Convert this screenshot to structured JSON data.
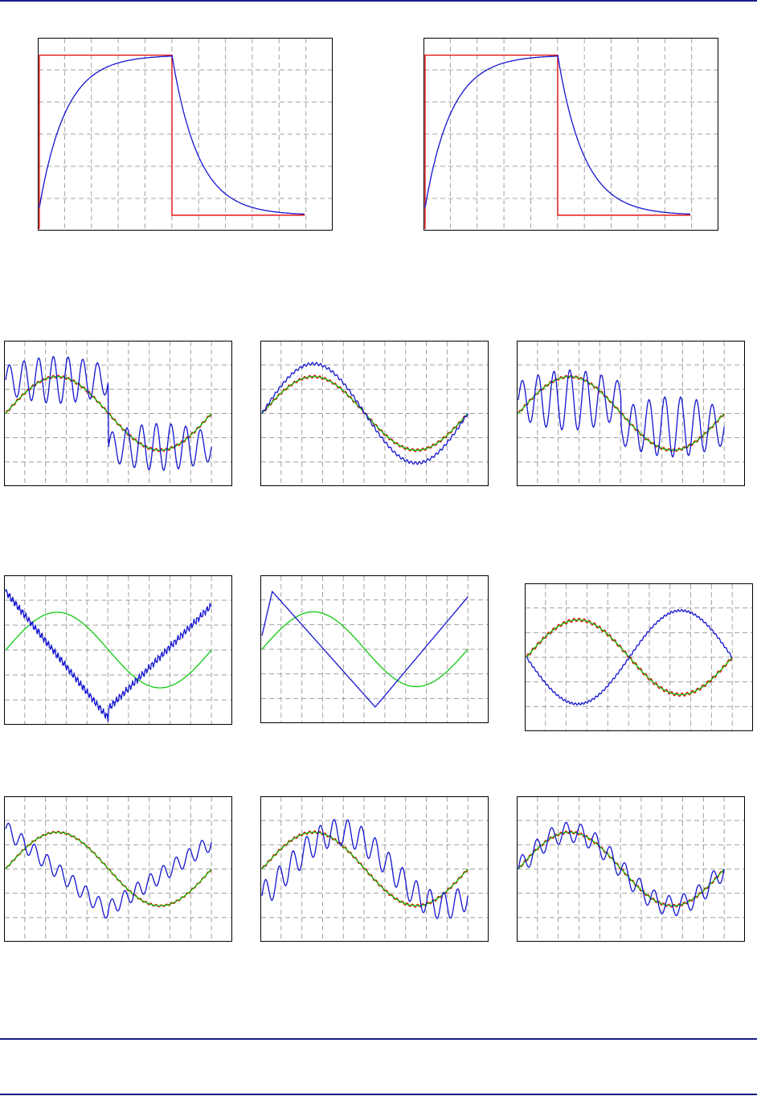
{
  "colors": {
    "page_rule": "#1a1a8c",
    "frame": "#000000",
    "grid": "#a0a0a0",
    "reference": "#e00000",
    "response": "#1414d2",
    "target": "#10c810"
  },
  "chart_data": [
    {
      "type": "line",
      "signal": "step",
      "grid": true,
      "xlim": [
        0,
        10
      ],
      "ylim": [
        -1,
        1
      ],
      "series": [
        {
          "color": "#e00000",
          "kind": "square"
        },
        {
          "color": "#1414d2",
          "kind": "exp_response",
          "tau": 1.0
        }
      ]
    },
    {
      "type": "line",
      "signal": "step",
      "grid": true,
      "xlim": [
        0,
        10
      ],
      "ylim": [
        -1,
        1
      ],
      "series": [
        {
          "color": "#e00000",
          "kind": "square"
        },
        {
          "color": "#1414d2",
          "kind": "exp_response",
          "tau": 1.0
        }
      ]
    },
    {
      "type": "line",
      "signal": "sine",
      "grid": true,
      "xlim": [
        0,
        10
      ],
      "ylim": [
        -1,
        1
      ],
      "amplitude": 0.55,
      "series": [
        {
          "color": "#e00000",
          "kind": "sine_ripple",
          "ripple": 0.02
        },
        {
          "color": "#10c810",
          "kind": "sine"
        },
        {
          "color": "#1414d2",
          "kind": "burst",
          "osc_amp": 0.35,
          "osc_freq": 14,
          "offset": 0.5
        }
      ]
    },
    {
      "type": "line",
      "signal": "sine",
      "grid": true,
      "xlim": [
        0,
        10
      ],
      "ylim": [
        -1,
        1
      ],
      "amplitude": 0.55,
      "series": [
        {
          "color": "#e00000",
          "kind": "sine_ripple",
          "ripple": 0.02
        },
        {
          "color": "#10c810",
          "kind": "sine"
        },
        {
          "color": "#1414d2",
          "kind": "sine_scaled",
          "gain": 1.35,
          "ripple": 0.02
        }
      ]
    },
    {
      "type": "line",
      "signal": "sine",
      "grid": true,
      "xlim": [
        0,
        10
      ],
      "ylim": [
        -1,
        1
      ],
      "amplitude": 0.55,
      "series": [
        {
          "color": "#e00000",
          "kind": "sine_ripple",
          "ripple": 0.02
        },
        {
          "color": "#10c810",
          "kind": "sine"
        },
        {
          "color": "#1414d2",
          "kind": "burst",
          "osc_amp": 0.45,
          "osc_freq": 13,
          "offset": 0.2
        }
      ]
    },
    {
      "type": "line",
      "signal": "sine",
      "grid": true,
      "xlim": [
        0,
        10
      ],
      "ylim": [
        -1,
        1
      ],
      "amplitude": 0.55,
      "series": [
        {
          "color": "#10c810",
          "kind": "sine"
        },
        {
          "color": "#1414d2",
          "kind": "sawtooth_noisy"
        }
      ]
    },
    {
      "type": "line",
      "signal": "sine",
      "grid": true,
      "xlim": [
        0,
        10
      ],
      "ylim": [
        -1,
        1
      ],
      "amplitude": 0.55,
      "series": [
        {
          "color": "#10c810",
          "kind": "sine"
        },
        {
          "color": "#1414d2",
          "kind": "triangle_like"
        }
      ]
    },
    {
      "type": "line",
      "signal": "sine",
      "grid": true,
      "xlim": [
        0,
        10
      ],
      "ylim": [
        -1,
        1
      ],
      "amplitude": 0.55,
      "series": [
        {
          "color": "#e00000",
          "kind": "sine_ripple",
          "ripple": 0.025
        },
        {
          "color": "#10c810",
          "kind": "sine"
        },
        {
          "color": "#1414d2",
          "kind": "inverted_sine",
          "ripple": 0.015
        }
      ]
    },
    {
      "type": "line",
      "signal": "sine",
      "grid": true,
      "xlim": [
        0,
        10
      ],
      "ylim": [
        -1,
        1
      ],
      "amplitude": 0.55,
      "series": [
        {
          "color": "#e00000",
          "kind": "sine_ripple",
          "ripple": 0.015
        },
        {
          "color": "#10c810",
          "kind": "sine"
        },
        {
          "color": "#1414d2",
          "kind": "sawtooth_ripple"
        }
      ]
    },
    {
      "type": "line",
      "signal": "sine",
      "grid": true,
      "xlim": [
        0,
        10
      ],
      "ylim": [
        -1,
        1
      ],
      "amplitude": 0.55,
      "series": [
        {
          "color": "#e00000",
          "kind": "sine_ripple",
          "ripple": 0.02
        },
        {
          "color": "#10c810",
          "kind": "sine"
        },
        {
          "color": "#1414d2",
          "kind": "phase_lag_ripple"
        }
      ]
    },
    {
      "type": "line",
      "signal": "sine",
      "grid": true,
      "xlim": [
        0,
        10
      ],
      "ylim": [
        -1,
        1
      ],
      "amplitude": 0.55,
      "series": [
        {
          "color": "#e00000",
          "kind": "sine_ripple",
          "ripple": 0.02
        },
        {
          "color": "#10c810",
          "kind": "sine"
        },
        {
          "color": "#1414d2",
          "kind": "sine_ripple_big"
        }
      ]
    }
  ]
}
